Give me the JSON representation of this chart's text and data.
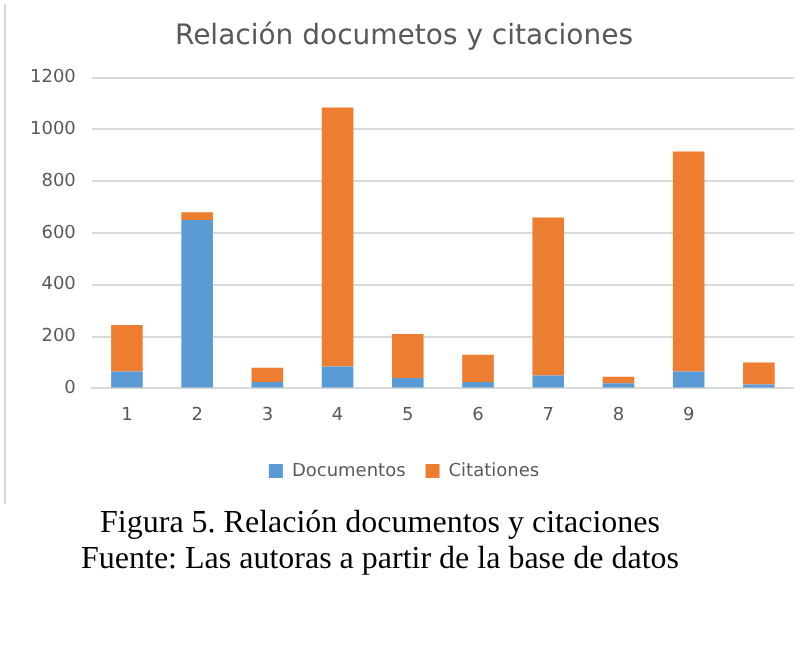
{
  "chart_data": {
    "type": "bar",
    "title": "Relación documetos y citaciones",
    "categories": [
      "1",
      "2",
      "3",
      "4",
      "5",
      "6",
      "7",
      "8",
      "9",
      null
    ],
    "stacked": true,
    "series": [
      {
        "name": "Documentos",
        "color": "#5b9bd5",
        "values": [
          65,
          650,
          25,
          85,
          40,
          25,
          50,
          20,
          65,
          15
        ]
      },
      {
        "name": "Citationes",
        "color": "#ed7d31",
        "values": [
          180,
          30,
          55,
          1000,
          170,
          105,
          610,
          25,
          850,
          85
        ]
      }
    ],
    "ylim": [
      0,
      1200
    ],
    "yticks": [
      0,
      200,
      400,
      600,
      800,
      1000,
      1200
    ],
    "grid": "y",
    "legend": "bottom",
    "annotations": [
      "Figura 5. Relación documentos y citaciones",
      "Fuente: Las autoras a partir de la base de datos"
    ]
  }
}
